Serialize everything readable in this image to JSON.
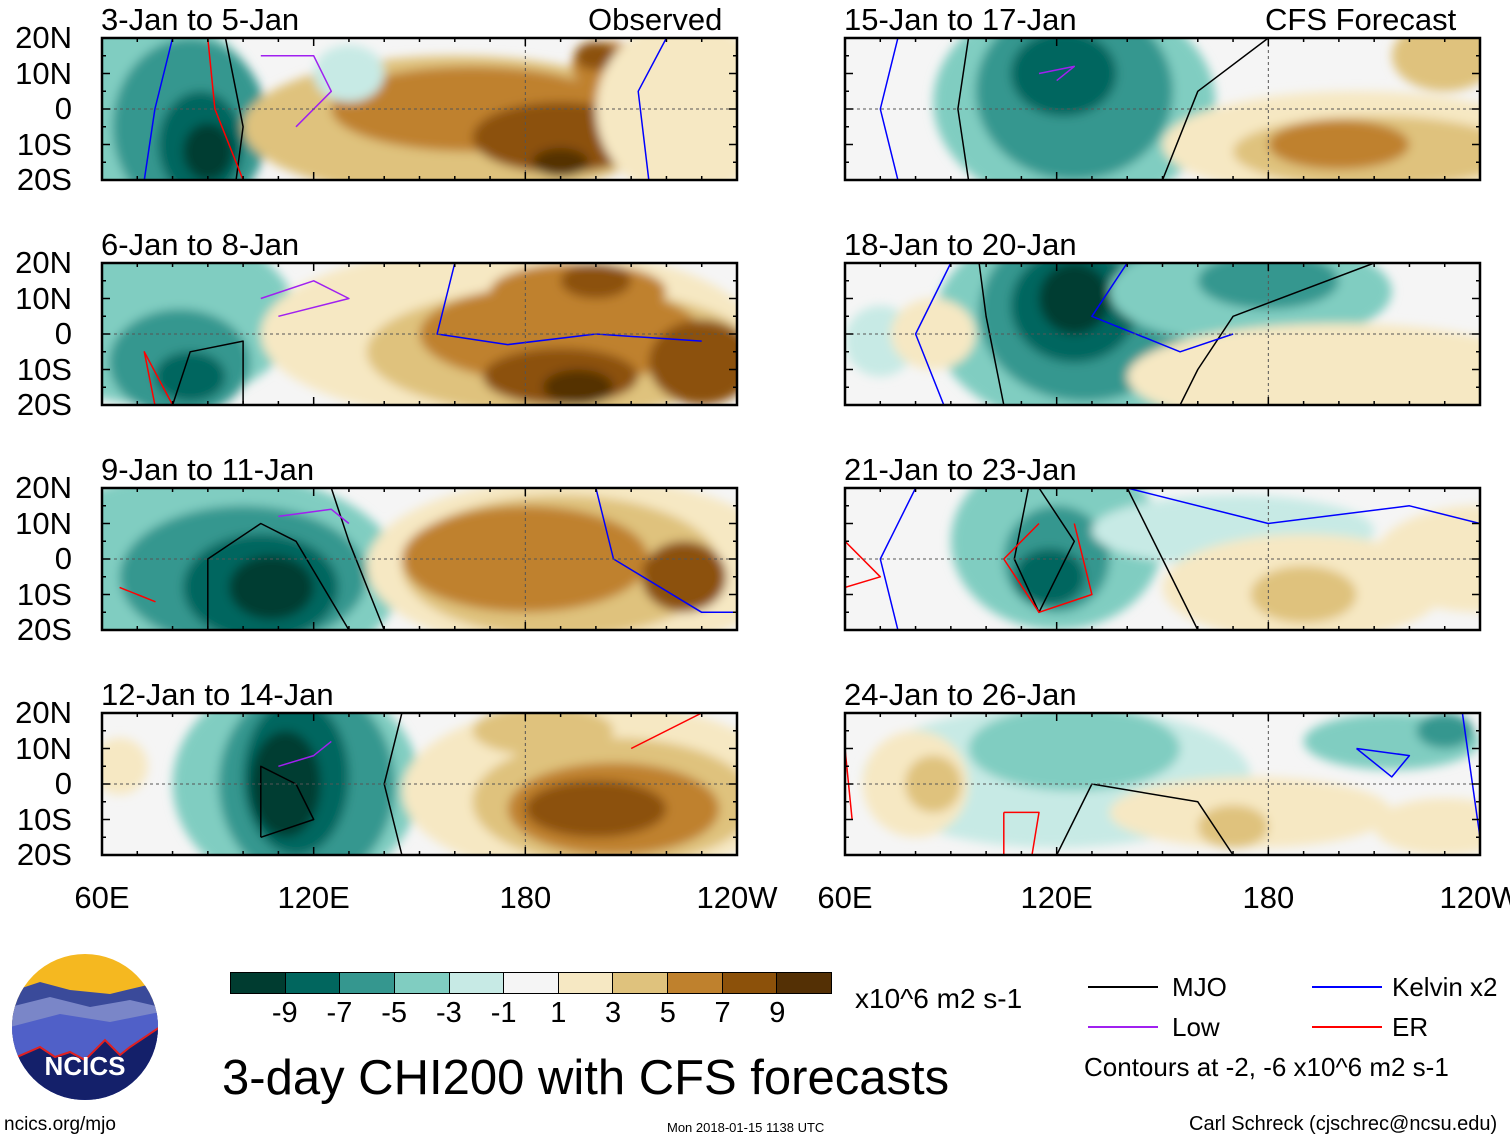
{
  "header": {
    "observed_label": "Observed",
    "forecast_label": "CFS Forecast"
  },
  "panels": [
    {
      "title": "3-Jan to 5-Jan",
      "group": "observed"
    },
    {
      "title": "6-Jan to 8-Jan",
      "group": "observed"
    },
    {
      "title": "9-Jan to 11-Jan",
      "group": "observed"
    },
    {
      "title": "12-Jan to 14-Jan",
      "group": "observed"
    },
    {
      "title": "15-Jan to 17-Jan",
      "group": "forecast"
    },
    {
      "title": "18-Jan to 20-Jan",
      "group": "forecast"
    },
    {
      "title": "21-Jan to 23-Jan",
      "group": "forecast"
    },
    {
      "title": "24-Jan to 26-Jan",
      "group": "forecast"
    }
  ],
  "axes": {
    "lat_labels": [
      "20N",
      "10N",
      "0",
      "10S",
      "20S"
    ],
    "lon_labels": [
      "60E",
      "120E",
      "180",
      "120W"
    ]
  },
  "colorbar": {
    "labels": [
      "-9",
      "-7",
      "-5",
      "-3",
      "-1",
      "1",
      "3",
      "5",
      "7",
      "9"
    ],
    "colors": [
      "#003c30",
      "#01665e",
      "#35978f",
      "#80cdc1",
      "#c7eae5",
      "#f5f5f5",
      "#f6e8c3",
      "#dfc27d",
      "#bf812d",
      "#8c510a",
      "#543005"
    ],
    "units": "x10^6 m2 s-1"
  },
  "title": "3-day CHI200 with CFS forecasts",
  "legend": {
    "items": [
      {
        "label": "MJO",
        "color": "#000000"
      },
      {
        "label": "Kelvin x2",
        "color": "#0000ff"
      },
      {
        "label": "Low",
        "color": "#a020f0"
      },
      {
        "label": "ER",
        "color": "#ff0000"
      }
    ],
    "contours_note": "Contours at -2, -6 x10^6 m2 s-1"
  },
  "logo": {
    "text": "NCICS"
  },
  "footer": {
    "url": "ncics.org/mjo",
    "timestamp": "Mon 2018-01-15 1138 UTC",
    "credit": "Carl Schreck (cjschrec@ncsu.edu)"
  }
}
